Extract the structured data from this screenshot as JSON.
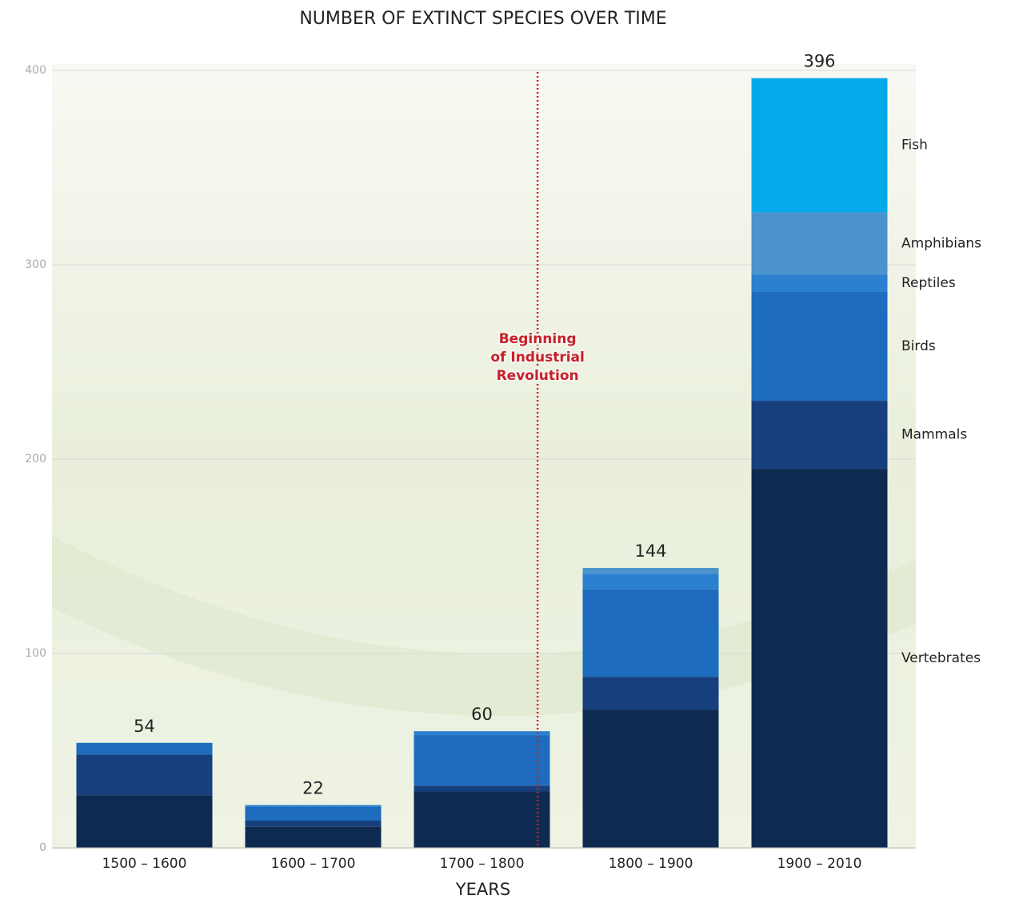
{
  "chart_data": {
    "type": "stacked-bar",
    "title": "NUMBER OF EXTINCT SPECIES OVER TIME",
    "xlabel": "YEARS",
    "categories": [
      "1500 – 1600",
      "1600 – 1700",
      "1700 – 1800",
      "1800 – 1900",
      "1900 – 2010"
    ],
    "series": [
      {
        "name": "Vertebrates",
        "color": "#0f2a50",
        "values": [
          27,
          11,
          29,
          71,
          195
        ]
      },
      {
        "name": "Mammals",
        "color": "#173f7d",
        "values": [
          21,
          3,
          3,
          17,
          35
        ]
      },
      {
        "name": "Birds",
        "color": "#1e6cbd",
        "values": [
          6,
          7,
          26,
          45,
          56
        ]
      },
      {
        "name": "Reptiles",
        "color": "#2b80cf",
        "values": [
          0,
          1,
          2,
          8,
          9
        ]
      },
      {
        "name": "Amphibians",
        "color": "#4a93cc",
        "values": [
          0,
          0,
          0,
          3,
          32
        ]
      },
      {
        "name": "Fish",
        "color": "#05a9ea",
        "values": [
          0,
          0,
          0,
          0,
          69
        ]
      }
    ],
    "totals": [
      54,
      22,
      60,
      144,
      396
    ],
    "annotation": [
      "Beginning",
      "of Industrial",
      "Revolution"
    ],
    "ylim": [
      0,
      400
    ],
    "yticks": [
      0,
      100,
      200,
      300,
      400
    ],
    "grid": true
  }
}
